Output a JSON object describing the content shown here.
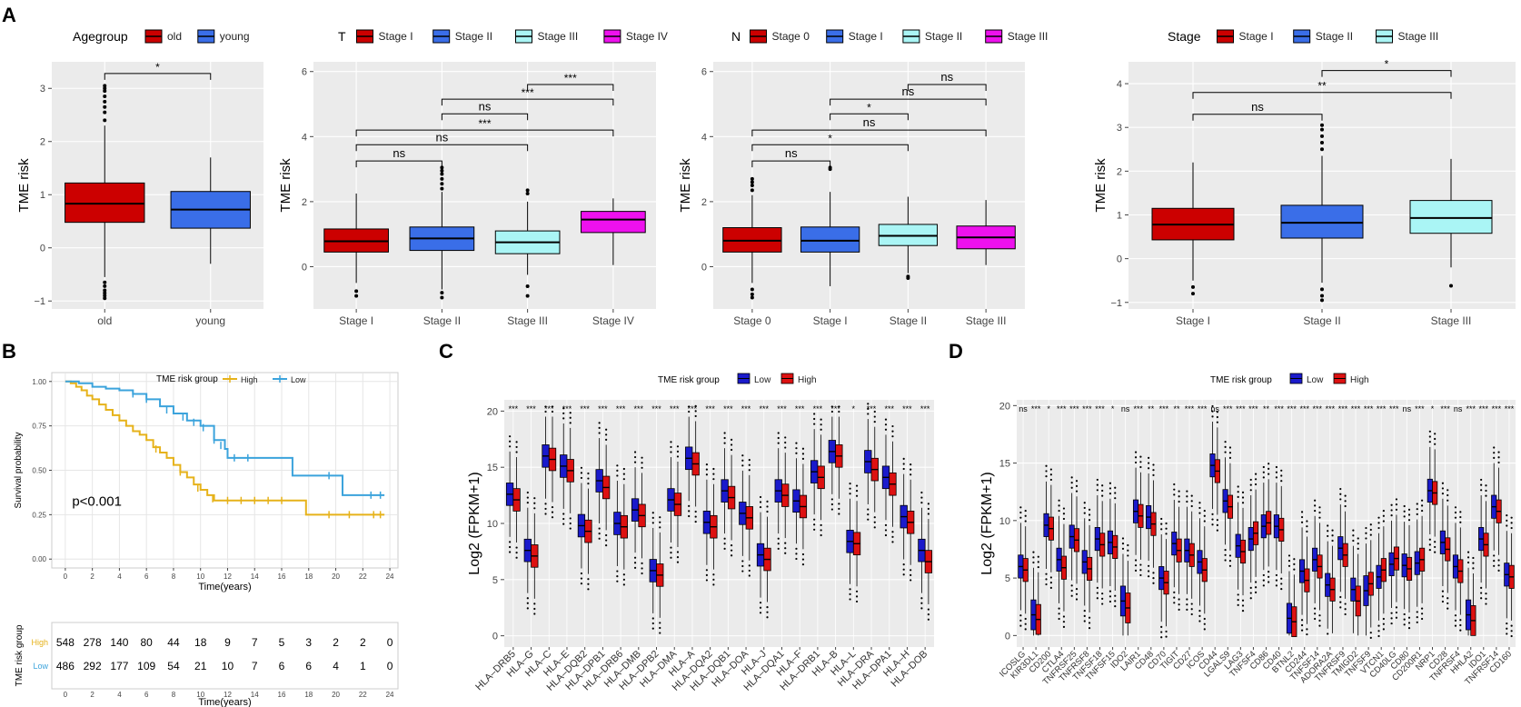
{
  "panel_letters": [
    "A",
    "B",
    "C",
    "D"
  ],
  "chart_data": [
    {
      "id": "A1",
      "type": "boxplot",
      "panel": "A",
      "legend_title": "Agegroup",
      "categories": [
        "old",
        "young"
      ],
      "colors": [
        "#cc0000",
        "#3a6ee8"
      ],
      "ylabel": "TME risk",
      "ylim": [
        -1.15,
        3.5
      ],
      "yticks": [
        -1,
        0,
        1,
        2,
        3
      ],
      "boxes": [
        {
          "q1": 0.48,
          "med": 0.83,
          "q3": 1.22,
          "lo": -0.55,
          "hi": 2.3,
          "out": [
            -0.65,
            -0.72,
            -0.8,
            -0.85,
            -0.9,
            -0.95,
            2.4,
            2.55,
            2.65,
            2.75,
            2.85,
            2.95,
            3.0,
            3.05
          ]
        },
        {
          "q1": 0.37,
          "med": 0.72,
          "q3": 1.06,
          "lo": -0.3,
          "hi": 1.7,
          "out": []
        }
      ],
      "brackets": [
        {
          "a": 0,
          "b": 1,
          "y": 3.28,
          "label": "*"
        }
      ]
    },
    {
      "id": "A2",
      "type": "boxplot",
      "panel": "A",
      "legend_title": "T",
      "categories": [
        "Stage I",
        "Stage II",
        "Stage III",
        "Stage IV"
      ],
      "colors": [
        "#cc0000",
        "#3a6ee8",
        "#aaf5f5",
        "#ee11ee"
      ],
      "ylabel": "TME risk",
      "ylim": [
        -1.3,
        6.3
      ],
      "yticks": [
        0,
        2,
        4,
        6
      ],
      "boxes": [
        {
          "q1": 0.45,
          "med": 0.78,
          "q3": 1.16,
          "lo": -0.5,
          "hi": 2.25,
          "out": [
            -0.75,
            -0.9
          ]
        },
        {
          "q1": 0.5,
          "med": 0.87,
          "q3": 1.22,
          "lo": -0.7,
          "hi": 2.3,
          "out": [
            -0.8,
            -0.95,
            2.4,
            2.55,
            2.7,
            2.85,
            2.95,
            3.05
          ]
        },
        {
          "q1": 0.4,
          "med": 0.75,
          "q3": 1.1,
          "lo": -0.25,
          "hi": 2.0,
          "out": [
            -0.6,
            -0.9,
            2.25,
            2.35
          ]
        },
        {
          "q1": 1.05,
          "med": 1.45,
          "q3": 1.7,
          "lo": 0.05,
          "hi": 2.1,
          "out": []
        }
      ],
      "brackets": [
        {
          "a": 0,
          "b": 1,
          "y": 3.25,
          "label": "ns"
        },
        {
          "a": 0,
          "b": 2,
          "y": 3.75,
          "label": "ns"
        },
        {
          "a": 0,
          "b": 3,
          "y": 4.2,
          "label": "***"
        },
        {
          "a": 1,
          "b": 3,
          "y": 5.15,
          "label": "***"
        },
        {
          "a": 1,
          "b": 2,
          "y": 4.7,
          "label": "ns"
        },
        {
          "a": 2,
          "b": 3,
          "y": 5.6,
          "label": "***"
        }
      ]
    },
    {
      "id": "A3",
      "type": "boxplot",
      "panel": "A",
      "legend_title": "N",
      "categories": [
        "Stage 0",
        "Stage I",
        "Stage II",
        "Stage III"
      ],
      "colors": [
        "#cc0000",
        "#3a6ee8",
        "#aaf5f5",
        "#ee11ee"
      ],
      "ylabel": "TME risk",
      "ylim": [
        -1.3,
        6.3
      ],
      "yticks": [
        0,
        2,
        4,
        6
      ],
      "boxes": [
        {
          "q1": 0.45,
          "med": 0.8,
          "q3": 1.2,
          "lo": -0.5,
          "hi": 2.2,
          "out": [
            -0.7,
            -0.85,
            -0.95,
            2.35,
            2.5,
            2.6,
            2.7
          ]
        },
        {
          "q1": 0.45,
          "med": 0.8,
          "q3": 1.22,
          "lo": -0.6,
          "hi": 2.3,
          "out": [
            3.0,
            3.05
          ]
        },
        {
          "q1": 0.65,
          "med": 0.95,
          "q3": 1.3,
          "lo": -0.2,
          "hi": 2.15,
          "out": [
            -0.3,
            -0.35
          ]
        },
        {
          "q1": 0.55,
          "med": 0.9,
          "q3": 1.25,
          "lo": 0.05,
          "hi": 2.05,
          "out": []
        }
      ],
      "brackets": [
        {
          "a": 0,
          "b": 1,
          "y": 3.25,
          "label": "ns"
        },
        {
          "a": 0,
          "b": 2,
          "y": 3.75,
          "label": "*"
        },
        {
          "a": 0,
          "b": 3,
          "y": 4.2,
          "label": "ns"
        },
        {
          "a": 1,
          "b": 2,
          "y": 4.7,
          "label": "*"
        },
        {
          "a": 1,
          "b": 3,
          "y": 5.15,
          "label": "ns"
        },
        {
          "a": 2,
          "b": 3,
          "y": 5.6,
          "label": "ns"
        }
      ]
    },
    {
      "id": "A4",
      "type": "boxplot",
      "panel": "A",
      "legend_title": "Stage",
      "categories": [
        "Stage I",
        "Stage II",
        "Stage III"
      ],
      "colors": [
        "#cc0000",
        "#3a6ee8",
        "#aaf5f5"
      ],
      "ylabel": "TME risk",
      "ylim": [
        -1.15,
        4.5
      ],
      "yticks": [
        -1,
        0,
        1,
        2,
        3,
        4
      ],
      "boxes": [
        {
          "q1": 0.43,
          "med": 0.78,
          "q3": 1.15,
          "lo": -0.5,
          "hi": 2.2,
          "out": [
            -0.65,
            -0.8
          ]
        },
        {
          "q1": 0.47,
          "med": 0.82,
          "q3": 1.22,
          "lo": -0.55,
          "hi": 2.35,
          "out": [
            -0.7,
            -0.85,
            -0.95,
            2.5,
            2.65,
            2.8,
            2.95,
            3.05
          ]
        },
        {
          "q1": 0.58,
          "med": 0.93,
          "q3": 1.33,
          "lo": -0.2,
          "hi": 2.28,
          "out": [
            -0.62
          ]
        }
      ],
      "brackets": [
        {
          "a": 0,
          "b": 1,
          "y": 3.3,
          "label": "ns"
        },
        {
          "a": 0,
          "b": 2,
          "y": 3.8,
          "label": "**"
        },
        {
          "a": 1,
          "b": 2,
          "y": 4.3,
          "label": "*"
        }
      ]
    },
    {
      "id": "B",
      "type": "line",
      "subtype": "kaplan-meier",
      "panel": "B",
      "legend_title": "TME risk group",
      "series": [
        {
          "name": "High",
          "color": "#e6b21a",
          "points": [
            [
              0,
              1.0
            ],
            [
              0.4,
              0.99
            ],
            [
              0.8,
              0.97
            ],
            [
              1.2,
              0.95
            ],
            [
              1.6,
              0.92
            ],
            [
              2.0,
              0.9
            ],
            [
              2.5,
              0.87
            ],
            [
              3.0,
              0.84
            ],
            [
              3.5,
              0.81
            ],
            [
              4.0,
              0.78
            ],
            [
              4.5,
              0.75
            ],
            [
              5.0,
              0.72
            ],
            [
              5.5,
              0.7
            ],
            [
              6.0,
              0.67
            ],
            [
              6.5,
              0.63
            ],
            [
              7.0,
              0.6
            ],
            [
              7.5,
              0.57
            ],
            [
              8.0,
              0.53
            ],
            [
              8.5,
              0.49
            ],
            [
              9.0,
              0.46
            ],
            [
              9.5,
              0.42
            ],
            [
              10.0,
              0.39
            ],
            [
              10.5,
              0.36
            ],
            [
              11.0,
              0.33
            ],
            [
              12.0,
              0.33
            ],
            [
              17.8,
              0.33
            ],
            [
              17.8,
              0.25
            ],
            [
              23.6,
              0.25
            ]
          ],
          "censors": [
            [
              6.7,
              0.62
            ],
            [
              8.5,
              0.49
            ],
            [
              9.8,
              0.4
            ],
            [
              10.9,
              0.34
            ],
            [
              12,
              0.33
            ],
            [
              13,
              0.33
            ],
            [
              14,
              0.33
            ],
            [
              15,
              0.33
            ],
            [
              16,
              0.33
            ],
            [
              19.5,
              0.25
            ],
            [
              21,
              0.25
            ],
            [
              22.8,
              0.25
            ],
            [
              23.3,
              0.25
            ]
          ]
        },
        {
          "name": "Low",
          "color": "#3ba3dc",
          "points": [
            [
              0,
              1.0
            ],
            [
              1.0,
              0.99
            ],
            [
              2.0,
              0.97
            ],
            [
              3.0,
              0.96
            ],
            [
              4.0,
              0.95
            ],
            [
              5.0,
              0.93
            ],
            [
              6.0,
              0.9
            ],
            [
              7.0,
              0.86
            ],
            [
              8.0,
              0.82
            ],
            [
              9.0,
              0.78
            ],
            [
              10.0,
              0.75
            ],
            [
              11.0,
              0.67
            ],
            [
              11.8,
              0.62
            ],
            [
              12.0,
              0.57
            ],
            [
              14.0,
              0.57
            ],
            [
              16.8,
              0.57
            ],
            [
              16.8,
              0.47
            ],
            [
              20.5,
              0.47
            ],
            [
              20.5,
              0.36
            ],
            [
              23.6,
              0.36
            ]
          ],
          "censors": [
            [
              5,
              0.93
            ],
            [
              6,
              0.9
            ],
            [
              7.5,
              0.84
            ],
            [
              8.7,
              0.8
            ],
            [
              9.5,
              0.77
            ],
            [
              10.2,
              0.74
            ],
            [
              11,
              0.67
            ],
            [
              11.5,
              0.64
            ],
            [
              12.5,
              0.57
            ],
            [
              13.5,
              0.57
            ],
            [
              19.5,
              0.47
            ],
            [
              22.6,
              0.36
            ],
            [
              23.3,
              0.36
            ]
          ]
        }
      ],
      "pvalue_text": "p<0.001",
      "xlabel": "Time(years)",
      "ylabel": "Survival probability",
      "xlim": [
        -1,
        24.6
      ],
      "ylim": [
        -0.05,
        1.05
      ],
      "xticks": [
        0,
        2,
        4,
        6,
        8,
        10,
        12,
        14,
        16,
        18,
        20,
        22,
        24
      ],
      "yticks": [
        0.0,
        0.25,
        0.5,
        0.75,
        1.0
      ],
      "ytick_labels": [
        "0.00",
        "0.25",
        "0.50",
        "0.75",
        "1.00"
      ],
      "risk_table": {
        "ylabel": "TME risk group",
        "xlabel": "Time(years)",
        "rows": [
          {
            "name": "High",
            "color": "#e6b21a",
            "values": [
              "548",
              "278",
              "140",
              "80",
              "44",
              "18",
              "9",
              "7",
              "5",
              "3",
              "2",
              "2",
              "0"
            ]
          },
          {
            "name": "Low",
            "color": "#3ba3dc",
            "values": [
              "486",
              "292",
              "177",
              "109",
              "54",
              "21",
              "10",
              "7",
              "6",
              "6",
              "4",
              "1",
              "0"
            ]
          }
        ]
      }
    },
    {
      "id": "C",
      "type": "boxplot",
      "subtype": "grouped",
      "panel": "C",
      "legend_title": "TME risk group",
      "group_names": [
        "Low",
        "High"
      ],
      "group_colors": [
        "#1a1acc",
        "#dd1111"
      ],
      "ylabel": "Log2 (FPKM+1)",
      "ylim": [
        -1,
        21
      ],
      "yticks": [
        0,
        5,
        10,
        15,
        20
      ],
      "categories": [
        "HLA–DRB5",
        "HLA–G",
        "HLA–C",
        "HLA–E",
        "HLA–DQB2",
        "HLA–DPB1",
        "HLA–DRB6",
        "HLA–DMB",
        "HLA–DPB2",
        "HLA–DMA",
        "HLA–A",
        "HLA–DQA2",
        "HLA–DQB1",
        "HLA–DOA",
        "HLA–J",
        "HLA–DQA1",
        "HLA–F",
        "HLA–DRB1",
        "HLA–B",
        "HLA–L",
        "HLA–DRA",
        "HLA–DPA1",
        "HLA–H",
        "HLA–DOB"
      ],
      "low_median": [
        12.6,
        7.6,
        16.0,
        15.1,
        9.8,
        13.8,
        10.0,
        11.2,
        5.8,
        12.1,
        15.8,
        10.1,
        12.9,
        10.9,
        7.2,
        12.9,
        12.0,
        14.6,
        16.4,
        8.4,
        15.5,
        14.1,
        10.6,
        7.6
      ],
      "high_median": [
        12.1,
        7.1,
        15.7,
        14.7,
        9.3,
        13.2,
        9.7,
        10.7,
        5.4,
        11.7,
        15.3,
        9.7,
        12.3,
        10.5,
        6.8,
        12.5,
        11.5,
        14.1,
        16.0,
        8.2,
        14.8,
        13.5,
        10.1,
        6.6
      ],
      "significance": [
        "***",
        "***",
        "***",
        "***",
        "***",
        "***",
        "***",
        "***",
        "***",
        "***",
        "***",
        "***",
        "***",
        "***",
        "***",
        "***",
        "***",
        "***",
        "***",
        "*",
        "***",
        "***",
        "***",
        "***"
      ]
    },
    {
      "id": "D",
      "type": "boxplot",
      "subtype": "grouped",
      "panel": "D",
      "legend_title": "TME risk group",
      "group_names": [
        "Low",
        "High"
      ],
      "group_colors": [
        "#1a1acc",
        "#dd1111"
      ],
      "ylabel": "Log2 (FPKM+1)",
      "ylim": [
        -1,
        20.5
      ],
      "yticks": [
        0,
        5,
        10,
        15,
        20
      ],
      "categories": [
        "ICOSLG",
        "KIR3DL1",
        "CD200",
        "CTLA4",
        "TNFRSF25",
        "TNFRSF8",
        "TNFSF18",
        "TNFSF15",
        "IDO2",
        "LAIR1",
        "CD48",
        "CD70",
        "TIGIT",
        "CD27",
        "ICOS",
        "CD44",
        "LGALS9",
        "LAG3",
        "TNFSF4",
        "CD86",
        "CD40",
        "BTNL2",
        "CD244",
        "TNFSF14",
        "ADORA2A",
        "TNFRSF9",
        "TMIGD2",
        "TNFSF9",
        "VTCN1",
        "CD40LG",
        "CD80",
        "CD200R1",
        "NRP1",
        "CD28",
        "TNFRSF4",
        "HHLA2",
        "IDO1",
        "TNFRSF14",
        "CD160"
      ],
      "category_labels": [
        "ICOSLG",
        "KIR3DL1",
        "CD200",
        "CTLA4",
        "TNFRSF25",
        "TNFRSF8",
        "TNFSF18",
        "TNFSF15",
        "IDO2",
        "LAIR1",
        "CD48",
        "CD70",
        "TIGIT",
        "CD27",
        "ICOS",
        "CD44",
        "LGALS9",
        "LAG3",
        "TNFSF4",
        "CD86",
        "CD40",
        "BTNL2",
        "CD244",
        "TNFSF14",
        "ADORA2A",
        "TNFRSF9",
        "TMIGD2",
        "TNFSF9",
        "VTCN1",
        "CD40LG",
        "CD80",
        "CD200R1",
        "NRP1",
        "CD28",
        "TNFRSF4",
        "HHLA2",
        "IDO1",
        "TNFRSF14",
        "CD160"
      ],
      "low_median": [
        6.0,
        1.8,
        9.6,
        6.6,
        8.6,
        6.4,
        8.4,
        8.1,
        3.0,
        10.8,
        10.3,
        5.0,
        8.0,
        7.4,
        6.4,
        14.8,
        11.7,
        7.8,
        8.4,
        9.5,
        9.5,
        1.5,
        5.6,
        6.6,
        4.4,
        7.6,
        4.0,
        3.9,
        5.1,
        6.2,
        6.1,
        6.3,
        12.6,
        8.1,
        6.0,
        1.8,
        8.4,
        11.2,
        5.3
      ],
      "high_median": [
        5.7,
        1.4,
        9.3,
        5.9,
        8.3,
        5.8,
        7.9,
        7.7,
        2.4,
        10.4,
        9.7,
        4.6,
        7.4,
        7.0,
        5.7,
        14.3,
        11.2,
        7.3,
        8.9,
        9.8,
        9.2,
        1.2,
        4.8,
        6.0,
        4.0,
        7.0,
        3.0,
        4.5,
        5.7,
        6.7,
        5.8,
        6.6,
        12.4,
        7.5,
        5.6,
        1.3,
        7.9,
        10.8,
        5.1
      ],
      "significance": [
        "ns",
        "***",
        "*",
        "***",
        "***",
        "***",
        "***",
        "*",
        "ns",
        "***",
        "**",
        "***",
        "**",
        "***",
        "***",
        "ns",
        "***",
        "***",
        "***",
        "**",
        "***",
        "***",
        "***",
        "***",
        "***",
        "***",
        "***",
        "***",
        "***",
        "***",
        "ns",
        "***",
        "*",
        "***",
        "ns",
        "***",
        "***",
        "***",
        "***"
      ]
    }
  ]
}
